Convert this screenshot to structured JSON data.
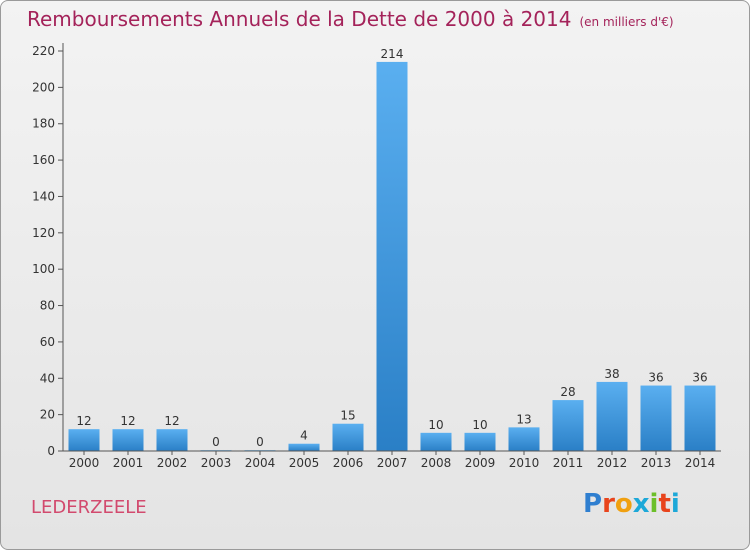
{
  "header": {
    "title": "Remboursements Annuels de la Dette de 2000 à 2014",
    "unit": "(en milliers d'€)"
  },
  "footer": {
    "commune": "LEDERZEELE",
    "brand": [
      "P",
      "r",
      "o",
      "x",
      "i",
      "t",
      "i"
    ],
    "brand_colors": [
      "#2f7fd0",
      "#e8441c",
      "#f0a010",
      "#1da8d8",
      "#6cbf2a",
      "#e8441c",
      "#1da8d8"
    ]
  },
  "colors": {
    "bar_top": "#5aaff0",
    "bar_bottom": "#2a7fc6",
    "title": "#a4235a",
    "commune": "#d24a6e"
  },
  "chart_data": {
    "type": "bar",
    "title": "Remboursements Annuels de la Dette de 2000 à 2014",
    "xlabel": "",
    "ylabel": "",
    "categories": [
      "2000",
      "2001",
      "2002",
      "2003",
      "2004",
      "2005",
      "2006",
      "2007",
      "2008",
      "2009",
      "2010",
      "2011",
      "2012",
      "2013",
      "2014"
    ],
    "values": [
      12,
      12,
      12,
      0,
      0,
      4,
      15,
      214,
      10,
      10,
      13,
      28,
      38,
      36,
      36
    ],
    "ylim": [
      0,
      220
    ],
    "yticks": [
      0,
      20,
      40,
      60,
      80,
      100,
      120,
      140,
      160,
      180,
      200,
      220
    ],
    "grid": false,
    "legend": "none"
  }
}
